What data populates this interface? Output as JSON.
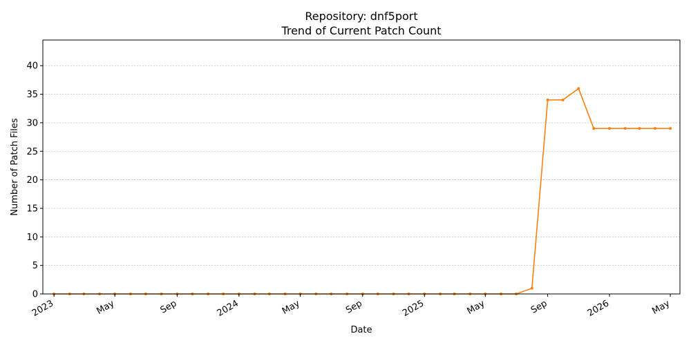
{
  "chart_data": {
    "type": "line",
    "title": "Repository: dnf5port",
    "subtitle": "Trend of Current Patch Count",
    "xlabel": "Date",
    "ylabel": "Number of Patch Files",
    "ylim": [
      0,
      44.5
    ],
    "yticks": [
      0,
      5,
      10,
      15,
      20,
      25,
      30,
      35,
      40
    ],
    "xlim": [
      "2022-12-10",
      "2026-05-20"
    ],
    "xticks": [
      {
        "date": "2023-01-01",
        "label": "2023"
      },
      {
        "date": "2023-05-01",
        "label": "May"
      },
      {
        "date": "2023-09-01",
        "label": "Sep"
      },
      {
        "date": "2024-01-01",
        "label": "2024"
      },
      {
        "date": "2024-05-01",
        "label": "May"
      },
      {
        "date": "2024-09-01",
        "label": "Sep"
      },
      {
        "date": "2025-01-01",
        "label": "2025"
      },
      {
        "date": "2025-05-01",
        "label": "May"
      },
      {
        "date": "2025-09-01",
        "label": "Sep"
      },
      {
        "date": "2026-01-01",
        "label": "2026"
      },
      {
        "date": "2026-05-01",
        "label": "May"
      }
    ],
    "grid": "y-dashed",
    "color": "#ff7f0e",
    "series": [
      {
        "x": [
          "2023-01-01",
          "2023-02-01",
          "2023-03-01",
          "2023-04-01",
          "2023-05-01",
          "2023-06-01",
          "2023-07-01",
          "2023-08-01",
          "2023-09-01",
          "2023-10-01",
          "2023-11-01",
          "2023-12-01",
          "2024-01-01",
          "2024-02-01",
          "2024-03-01",
          "2024-04-01",
          "2024-05-01",
          "2024-06-01",
          "2024-07-01",
          "2024-08-01",
          "2024-09-01",
          "2024-10-01",
          "2024-11-01",
          "2024-12-01",
          "2025-01-01",
          "2025-02-01",
          "2025-03-01",
          "2025-04-01",
          "2025-05-01",
          "2025-06-01",
          "2025-07-01",
          "2025-08-01",
          "2025-09-01",
          "2025-10-01",
          "2025-11-01",
          "2025-12-01",
          "2026-01-01",
          "2026-02-01",
          "2026-03-01",
          "2026-04-01",
          "2026-05-01"
        ],
        "values": [
          0,
          0,
          0,
          0,
          0,
          0,
          0,
          0,
          0,
          0,
          0,
          0,
          0,
          0,
          0,
          0,
          0,
          0,
          0,
          0,
          0,
          0,
          0,
          0,
          0,
          0,
          0,
          0,
          0,
          0,
          0,
          1,
          34,
          34,
          36,
          29,
          29,
          29,
          29,
          29,
          29
        ]
      }
    ]
  }
}
